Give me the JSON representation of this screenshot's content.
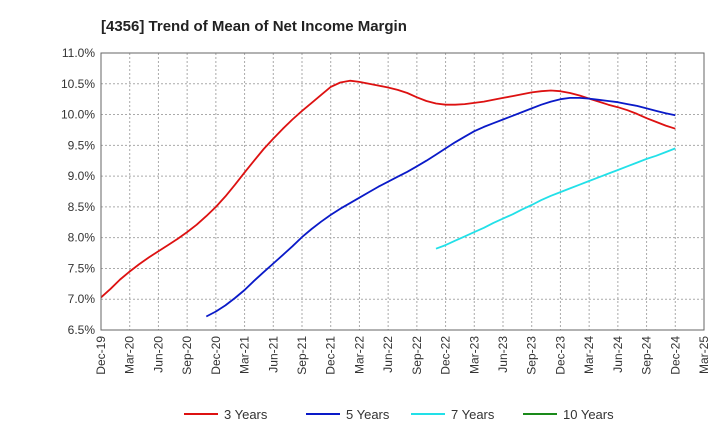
{
  "chart_data": {
    "type": "line",
    "title": "[4356]  Trend of Mean of Net Income Margin",
    "xlabel": "",
    "ylabel": "",
    "ylim": [
      6.5,
      11.0
    ],
    "yticks": [
      6.5,
      7.0,
      7.5,
      8.0,
      8.5,
      9.0,
      9.5,
      10.0,
      10.5,
      11.0
    ],
    "ytick_labels": [
      "6.5%",
      "7.0%",
      "7.5%",
      "8.0%",
      "8.5%",
      "9.0%",
      "9.5%",
      "10.0%",
      "10.5%",
      "11.0%"
    ],
    "xtick_labels": [
      "Dec-19",
      "Mar-20",
      "Jun-20",
      "Sep-20",
      "Dec-20",
      "Mar-21",
      "Jun-21",
      "Sep-21",
      "Dec-21",
      "Mar-22",
      "Jun-22",
      "Sep-22",
      "Dec-22",
      "Mar-23",
      "Jun-23",
      "Sep-23",
      "Dec-23",
      "Mar-24",
      "Jun-24",
      "Sep-24",
      "Dec-24",
      "Mar-25"
    ],
    "grid": true,
    "legend_position": "bottom",
    "series": [
      {
        "name": "3 Years",
        "color": "#dd1111",
        "x": [
          "Dec-19",
          "Jan-20",
          "Feb-20",
          "Mar-20",
          "Apr-20",
          "May-20",
          "Jun-20",
          "Jul-20",
          "Aug-20",
          "Sep-20",
          "Oct-20",
          "Nov-20",
          "Dec-20",
          "Jan-21",
          "Feb-21",
          "Mar-21",
          "Apr-21",
          "May-21",
          "Jun-21",
          "Jul-21",
          "Aug-21",
          "Sep-21",
          "Oct-21",
          "Nov-21",
          "Dec-21",
          "Jan-22",
          "Feb-22",
          "Mar-22",
          "Apr-22",
          "May-22",
          "Jun-22",
          "Jul-22",
          "Aug-22",
          "Sep-22",
          "Oct-22",
          "Nov-22",
          "Dec-22",
          "Jan-23",
          "Feb-23",
          "Mar-23",
          "Apr-23",
          "May-23",
          "Jun-23",
          "Jul-23",
          "Aug-23",
          "Sep-23",
          "Oct-23",
          "Nov-23",
          "Dec-23",
          "Jan-24",
          "Feb-24",
          "Mar-24",
          "Apr-24",
          "May-24",
          "Jun-24",
          "Jul-24",
          "Aug-24",
          "Sep-24",
          "Oct-24",
          "Nov-24",
          "Dec-24"
        ],
        "values": [
          7.03,
          7.17,
          7.32,
          7.45,
          7.57,
          7.68,
          7.78,
          7.88,
          7.98,
          8.09,
          8.21,
          8.35,
          8.5,
          8.67,
          8.86,
          9.06,
          9.25,
          9.44,
          9.61,
          9.77,
          9.92,
          10.06,
          10.19,
          10.32,
          10.45,
          10.52,
          10.55,
          10.53,
          10.5,
          10.47,
          10.44,
          10.4,
          10.35,
          10.28,
          10.22,
          10.18,
          10.16,
          10.16,
          10.17,
          10.19,
          10.21,
          10.24,
          10.27,
          10.3,
          10.33,
          10.36,
          10.38,
          10.39,
          10.38,
          10.35,
          10.31,
          10.26,
          10.21,
          10.16,
          10.12,
          10.07,
          10.01,
          9.94,
          9.88,
          9.82,
          9.77
        ]
      },
      {
        "name": "5 Years",
        "color": "#0a1ac8",
        "x": [
          "Nov-20",
          "Dec-20",
          "Jan-21",
          "Feb-21",
          "Mar-21",
          "Apr-21",
          "May-21",
          "Jun-21",
          "Jul-21",
          "Aug-21",
          "Sep-21",
          "Oct-21",
          "Nov-21",
          "Dec-21",
          "Jan-22",
          "Feb-22",
          "Mar-22",
          "Apr-22",
          "May-22",
          "Jun-22",
          "Jul-22",
          "Aug-22",
          "Sep-22",
          "Oct-22",
          "Nov-22",
          "Dec-22",
          "Jan-23",
          "Feb-23",
          "Mar-23",
          "Apr-23",
          "May-23",
          "Jun-23",
          "Jul-23",
          "Aug-23",
          "Sep-23",
          "Oct-23",
          "Nov-23",
          "Dec-23",
          "Jan-24",
          "Feb-24",
          "Mar-24",
          "Apr-24",
          "May-24",
          "Jun-24",
          "Jul-24",
          "Aug-24",
          "Sep-24",
          "Oct-24",
          "Nov-24",
          "Dec-24"
        ],
        "values": [
          6.72,
          6.8,
          6.9,
          7.02,
          7.15,
          7.3,
          7.44,
          7.58,
          7.72,
          7.86,
          8.01,
          8.14,
          8.26,
          8.37,
          8.47,
          8.56,
          8.65,
          8.74,
          8.83,
          8.91,
          8.99,
          9.07,
          9.16,
          9.25,
          9.35,
          9.45,
          9.55,
          9.64,
          9.73,
          9.8,
          9.86,
          9.92,
          9.98,
          10.04,
          10.1,
          10.16,
          10.21,
          10.25,
          10.27,
          10.27,
          10.26,
          10.24,
          10.22,
          10.2,
          10.17,
          10.14,
          10.1,
          10.06,
          10.02,
          9.99
        ]
      },
      {
        "name": "7 Years",
        "color": "#22e0e8",
        "x": [
          "Nov-22",
          "Dec-22",
          "Jan-23",
          "Feb-23",
          "Mar-23",
          "Apr-23",
          "May-23",
          "Jun-23",
          "Jul-23",
          "Aug-23",
          "Sep-23",
          "Oct-23",
          "Nov-23",
          "Dec-23",
          "Jan-24",
          "Feb-24",
          "Mar-24",
          "Apr-24",
          "May-24",
          "Jun-24",
          "Jul-24",
          "Aug-24",
          "Sep-24",
          "Oct-24",
          "Nov-24",
          "Dec-24"
        ],
        "values": [
          7.82,
          7.88,
          7.95,
          8.02,
          8.09,
          8.16,
          8.24,
          8.31,
          8.38,
          8.46,
          8.53,
          8.61,
          8.68,
          8.74,
          8.8,
          8.86,
          8.92,
          8.98,
          9.04,
          9.1,
          9.16,
          9.22,
          9.28,
          9.33,
          9.39,
          9.45
        ]
      },
      {
        "name": "10 Years",
        "color": "#1a8a1a",
        "x": [],
        "values": []
      }
    ]
  }
}
